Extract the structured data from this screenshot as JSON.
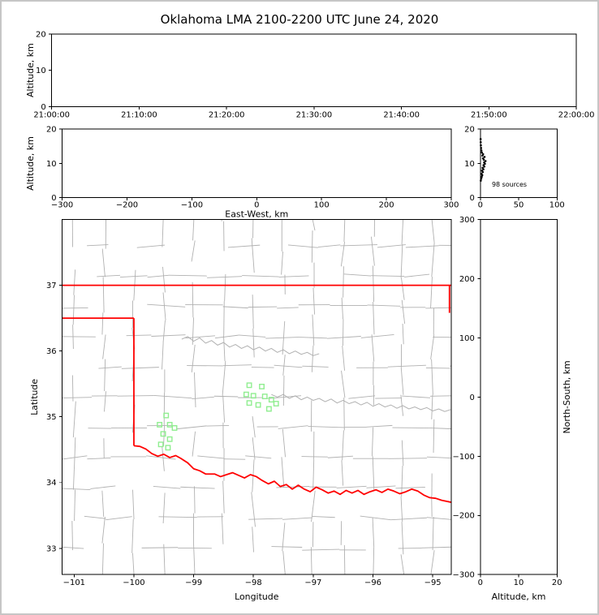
{
  "figure": {
    "title": "Oklahoma LMA 2100-2200 UTC June 24, 2020",
    "background": "#ffffff",
    "border_color": "#c6c6c6"
  },
  "colors": {
    "axis": "#000000",
    "county": "#b0b0b0",
    "state_border": "#ff0000",
    "station": "#90ee90",
    "source": "#000000"
  },
  "chart_data": [
    {
      "id": "time_altitude",
      "type": "scatter",
      "title": "",
      "xlabel": "",
      "ylabel": "Altitude, km",
      "xlim": [
        0,
        3600
      ],
      "ylim": [
        0,
        20
      ],
      "grid": false,
      "xticks": {
        "values": [
          0,
          600,
          1200,
          1800,
          2400,
          3000,
          3600
        ],
        "labels": [
          "21:00:00",
          "21:10:00",
          "21:20:00",
          "21:30:00",
          "21:40:00",
          "21:50:00",
          "22:00:00"
        ]
      },
      "yticks": {
        "values": [
          0,
          10,
          20
        ],
        "labels": [
          "0",
          "10",
          "20"
        ]
      },
      "points": []
    },
    {
      "id": "ew_altitude",
      "type": "scatter",
      "xlabel": "East-West, km",
      "ylabel": "Altitude, km",
      "xlim": [
        -300,
        300
      ],
      "ylim": [
        0,
        20
      ],
      "grid": false,
      "xticks": {
        "values": [
          -300,
          -200,
          -100,
          0,
          100,
          200,
          300
        ],
        "labels": [
          "−300",
          "−200",
          "−100",
          "0",
          "100",
          "200",
          "300"
        ]
      },
      "yticks": {
        "values": [
          0,
          10,
          20
        ],
        "labels": [
          "0",
          "10",
          "20"
        ]
      },
      "points": []
    },
    {
      "id": "altitude_histogram",
      "type": "scatter",
      "xlabel": "",
      "ylabel": "",
      "xlim": [
        0,
        100
      ],
      "ylim": [
        0,
        20
      ],
      "grid": false,
      "annotation": "98 sources",
      "annotation_xy": [
        15,
        3.2
      ],
      "xticks": {
        "values": [
          0,
          50,
          100
        ],
        "labels": [
          "0",
          "50",
          "100"
        ]
      },
      "yticks": {
        "values": [
          0,
          10,
          20
        ],
        "labels": [
          "0",
          "10",
          "20"
        ]
      },
      "points": [
        [
          0.6,
          5.0
        ],
        [
          1.2,
          5.6
        ],
        [
          1.8,
          6.1
        ],
        [
          2.5,
          6.6
        ],
        [
          1.5,
          7.0
        ],
        [
          3.2,
          7.5
        ],
        [
          2.2,
          7.9
        ],
        [
          4.0,
          8.3
        ],
        [
          3.0,
          8.7
        ],
        [
          5.2,
          9.1
        ],
        [
          4.2,
          9.5
        ],
        [
          6.0,
          9.9
        ],
        [
          5.0,
          10.3
        ],
        [
          6.8,
          10.7
        ],
        [
          4.5,
          11.1
        ],
        [
          3.5,
          11.5
        ],
        [
          5.5,
          11.9
        ],
        [
          2.8,
          12.3
        ],
        [
          3.6,
          12.7
        ],
        [
          2.0,
          13.2
        ],
        [
          1.4,
          13.8
        ],
        [
          1.0,
          14.5
        ],
        [
          0.7,
          15.3
        ],
        [
          0.5,
          16.2
        ],
        [
          0.4,
          17.1
        ]
      ]
    },
    {
      "id": "map",
      "type": "scatter",
      "xlabel": "Longitude",
      "ylabel": "Latitude",
      "xlim": [
        -101.2,
        -94.69
      ],
      "ylim": [
        32.6,
        38.0
      ],
      "grid": false,
      "xticks": {
        "values": [
          -101,
          -100,
          -99,
          -98,
          -97,
          -96,
          -95
        ],
        "labels": [
          "−101",
          "−100",
          "−99",
          "−98",
          "−97",
          "−96",
          "−95"
        ]
      },
      "yticks": {
        "values": [
          33,
          34,
          35,
          36,
          37
        ],
        "labels": [
          "33",
          "34",
          "35",
          "36",
          "37"
        ]
      },
      "stations": [
        [
          -98.07,
          35.48
        ],
        [
          -97.86,
          35.46
        ],
        [
          -98.12,
          35.34
        ],
        [
          -98.0,
          35.32
        ],
        [
          -97.81,
          35.31
        ],
        [
          -97.7,
          35.26
        ],
        [
          -98.07,
          35.21
        ],
        [
          -97.92,
          35.18
        ],
        [
          -97.62,
          35.2
        ],
        [
          -97.74,
          35.12
        ],
        [
          -99.46,
          35.02
        ],
        [
          -99.57,
          34.88
        ],
        [
          -99.4,
          34.88
        ],
        [
          -99.32,
          34.83
        ],
        [
          -99.51,
          34.74
        ],
        [
          -99.4,
          34.66
        ],
        [
          -99.55,
          34.58
        ],
        [
          -99.43,
          34.53
        ]
      ],
      "state_border": [
        [
          [
            -101.2,
            37.0
          ],
          [
            -94.69,
            37.0
          ]
        ],
        [
          [
            -101.2,
            36.5
          ],
          [
            -100.0,
            36.5
          ]
        ],
        [
          [
            -100.0,
            36.5
          ],
          [
            -100.0,
            34.56
          ]
        ],
        [
          [
            -94.72,
            37.0
          ],
          [
            -94.72,
            36.58
          ]
        ],
        [
          [
            -100.0,
            34.56
          ],
          [
            -99.9,
            34.55
          ],
          [
            -99.8,
            34.51
          ],
          [
            -99.7,
            34.44
          ],
          [
            -99.6,
            34.4
          ],
          [
            -99.5,
            34.43
          ],
          [
            -99.4,
            34.38
          ],
          [
            -99.3,
            34.41
          ],
          [
            -99.22,
            34.37
          ],
          [
            -99.1,
            34.3
          ],
          [
            -99.0,
            34.21
          ],
          [
            -98.9,
            34.18
          ],
          [
            -98.8,
            34.13
          ],
          [
            -98.65,
            34.13
          ],
          [
            -98.55,
            34.09
          ],
          [
            -98.45,
            34.12
          ],
          [
            -98.35,
            34.15
          ],
          [
            -98.25,
            34.11
          ],
          [
            -98.15,
            34.07
          ],
          [
            -98.05,
            34.12
          ],
          [
            -97.95,
            34.09
          ],
          [
            -97.85,
            34.03
          ],
          [
            -97.75,
            33.98
          ],
          [
            -97.65,
            34.02
          ],
          [
            -97.55,
            33.94
          ],
          [
            -97.45,
            33.97
          ],
          [
            -97.35,
            33.9
          ],
          [
            -97.25,
            33.96
          ],
          [
            -97.15,
            33.9
          ],
          [
            -97.05,
            33.86
          ],
          [
            -96.95,
            33.93
          ],
          [
            -96.85,
            33.89
          ],
          [
            -96.75,
            33.84
          ],
          [
            -96.65,
            33.87
          ],
          [
            -96.55,
            33.82
          ],
          [
            -96.45,
            33.88
          ],
          [
            -96.35,
            33.84
          ],
          [
            -96.25,
            33.88
          ],
          [
            -96.15,
            33.82
          ],
          [
            -96.05,
            33.86
          ],
          [
            -95.95,
            33.89
          ],
          [
            -95.85,
            33.85
          ],
          [
            -95.75,
            33.9
          ],
          [
            -95.65,
            33.87
          ],
          [
            -95.55,
            33.83
          ],
          [
            -95.45,
            33.86
          ],
          [
            -95.35,
            33.9
          ],
          [
            -95.25,
            33.87
          ],
          [
            -95.15,
            33.81
          ],
          [
            -95.05,
            33.77
          ],
          [
            -94.95,
            33.76
          ],
          [
            -94.85,
            33.73
          ],
          [
            -94.69,
            33.7
          ]
        ]
      ],
      "rivers": [
        [
          [
            -99.2,
            36.18
          ],
          [
            -99.1,
            36.22
          ],
          [
            -99.0,
            36.15
          ],
          [
            -98.9,
            36.2
          ],
          [
            -98.8,
            36.12
          ],
          [
            -98.7,
            36.16
          ],
          [
            -98.6,
            36.09
          ],
          [
            -98.5,
            36.13
          ],
          [
            -98.4,
            36.06
          ],
          [
            -98.3,
            36.1
          ],
          [
            -98.2,
            36.04
          ],
          [
            -98.1,
            36.08
          ],
          [
            -98.0,
            36.02
          ],
          [
            -97.9,
            36.06
          ],
          [
            -97.8,
            36.0
          ],
          [
            -97.7,
            36.04
          ],
          [
            -97.6,
            35.98
          ],
          [
            -97.5,
            36.02
          ],
          [
            -97.4,
            35.96
          ],
          [
            -97.3,
            36.0
          ],
          [
            -97.2,
            35.95
          ],
          [
            -97.1,
            35.98
          ],
          [
            -97.0,
            35.93
          ],
          [
            -96.9,
            35.96
          ]
        ],
        [
          [
            -97.7,
            35.34
          ],
          [
            -97.6,
            35.3
          ],
          [
            -97.5,
            35.34
          ],
          [
            -97.4,
            35.28
          ],
          [
            -97.3,
            35.32
          ],
          [
            -97.2,
            35.26
          ],
          [
            -97.1,
            35.3
          ],
          [
            -97.0,
            35.25
          ],
          [
            -96.9,
            35.28
          ],
          [
            -96.8,
            35.23
          ],
          [
            -96.7,
            35.27
          ],
          [
            -96.6,
            35.21
          ],
          [
            -96.5,
            35.25
          ],
          [
            -96.4,
            35.2
          ],
          [
            -96.3,
            35.23
          ],
          [
            -96.2,
            35.18
          ],
          [
            -96.1,
            35.22
          ],
          [
            -96.0,
            35.16
          ],
          [
            -95.9,
            35.2
          ],
          [
            -95.8,
            35.15
          ],
          [
            -95.7,
            35.18
          ],
          [
            -95.6,
            35.13
          ],
          [
            -95.5,
            35.17
          ],
          [
            -95.4,
            35.12
          ],
          [
            -95.3,
            35.15
          ],
          [
            -95.2,
            35.11
          ],
          [
            -95.1,
            35.14
          ],
          [
            -95.0,
            35.09
          ],
          [
            -94.9,
            35.12
          ],
          [
            -94.8,
            35.08
          ],
          [
            -94.7,
            35.11
          ]
        ]
      ],
      "county_grid": {
        "lon_start": -101.0,
        "lon_step": 0.5,
        "lat_start": 33.0,
        "lat_step": 0.46,
        "seed": 12
      }
    },
    {
      "id": "ns_altitude",
      "type": "scatter",
      "xlabel": "Altitude, km",
      "ylabel_right": "North-South, km",
      "xlim": [
        0,
        20
      ],
      "ylim": [
        -300,
        300
      ],
      "grid": false,
      "xticks": {
        "values": [
          0,
          10,
          20
        ],
        "labels": [
          "0",
          "10",
          "20"
        ]
      },
      "yticks": {
        "values": [
          -300,
          -200,
          -100,
          0,
          100,
          200,
          300
        ],
        "labels": [
          "−300",
          "−200",
          "−100",
          "0",
          "100",
          "200",
          "300"
        ]
      },
      "points": []
    }
  ]
}
